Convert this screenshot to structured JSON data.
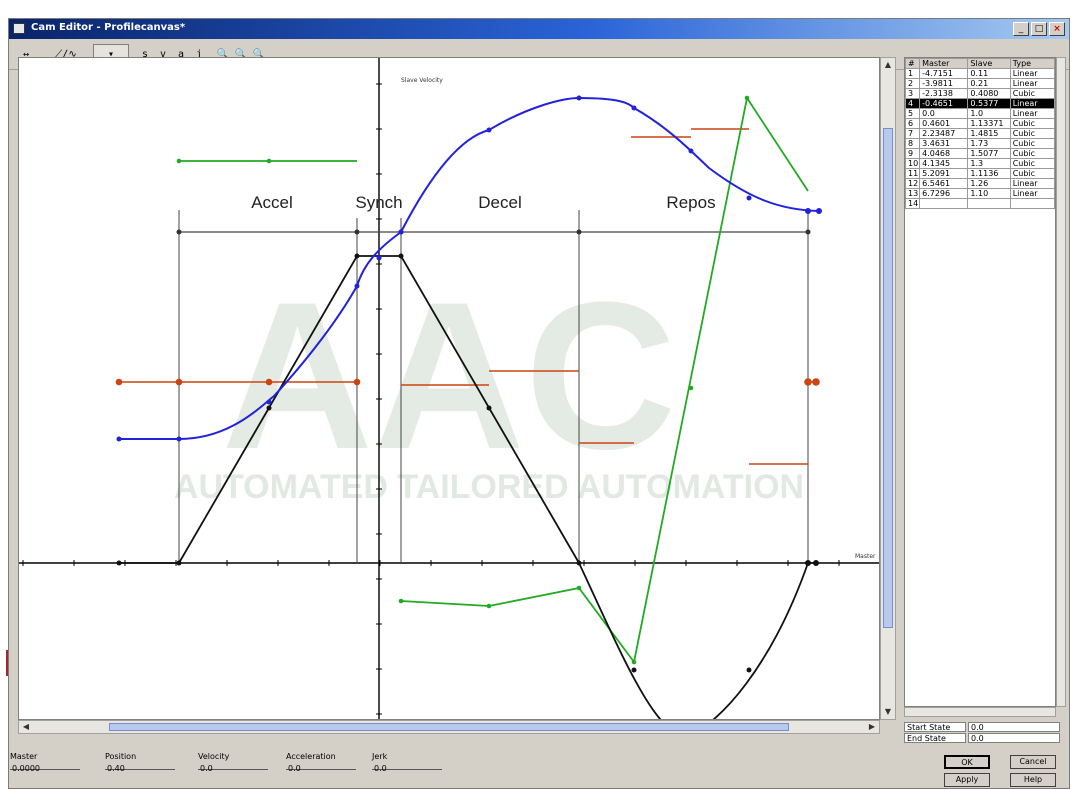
{
  "window": {
    "title": "Cam Editor - Profilecanvas*"
  },
  "toolbar": {
    "buttons": [
      {
        "label": "↔",
        "icon": "pan-icon"
      },
      {
        "label": "⟋∕∿",
        "icon": "curve-icons"
      },
      {
        "label": "▾",
        "icon": "dropdown-icon"
      },
      {
        "label": "s",
        "icon": "position-icon"
      },
      {
        "label": "v",
        "icon": "velocity-icon"
      },
      {
        "label": "a",
        "icon": "acceleration-icon"
      },
      {
        "label": "j",
        "icon": "jerk-icon"
      },
      {
        "label": "🔍",
        "icon": "zoom-icon"
      }
    ]
  },
  "plot": {
    "y_axis_caption": "Slave Velocity",
    "x_axis_caption": "Master",
    "segments": [
      "Accel",
      "Synch",
      "Decel",
      "Repos"
    ],
    "watermark_main": "AAC",
    "watermark_sub": "AUTOMATED TAILORED AUTOMATION"
  },
  "table": {
    "headers": [
      "#",
      "Master",
      "Slave",
      "Type"
    ],
    "rows": [
      [
        "1",
        "-4.7151",
        "0.11",
        "Linear"
      ],
      [
        "2",
        "-3.9811",
        "0.21",
        "Linear"
      ],
      [
        "3",
        "-2.3138",
        "0.4080",
        "Cubic"
      ],
      [
        "4",
        "-0.4651",
        "0.5377",
        "Linear"
      ],
      [
        "5",
        "0.0",
        "1.0",
        "Linear"
      ],
      [
        "6",
        "0.4601",
        "1.13371",
        "Cubic"
      ],
      [
        "7",
        "2.23487",
        "1.4815",
        "Cubic"
      ],
      [
        "8",
        "3.4631",
        "1.73",
        "Cubic"
      ],
      [
        "9",
        "4.0468",
        "1.5077",
        "Cubic"
      ],
      [
        "10",
        "4.1345",
        "1.3",
        "Cubic"
      ],
      [
        "11",
        "5.2091",
        "1.1136",
        "Cubic"
      ],
      [
        "12",
        "6.5461",
        "1.26",
        "Linear"
      ],
      [
        "13",
        "6.7296",
        "1.10",
        "Linear"
      ],
      [
        "14",
        "",
        "",
        ""
      ]
    ],
    "selected_row": 3
  },
  "state": {
    "start_label": "Start State",
    "start_value": "0.0",
    "end_label": "End State",
    "end_value": "0.0"
  },
  "status": [
    {
      "label": "Master",
      "value": "0.0000"
    },
    {
      "label": "Position",
      "value": "0.40"
    },
    {
      "label": "Velocity",
      "value": "0.0"
    },
    {
      "label": "Acceleration",
      "value": "0.0"
    },
    {
      "label": "Jerk",
      "value": "0.0"
    }
  ],
  "buttons": {
    "ok": "OK",
    "cancel": "Cancel",
    "apply": "Apply",
    "help": "Help"
  },
  "colors": {
    "position": "#2222dd",
    "velocity": "#000000",
    "acceleration": "#22aa22",
    "jerk": "#cc4411",
    "segment_lines": "#333333"
  }
}
